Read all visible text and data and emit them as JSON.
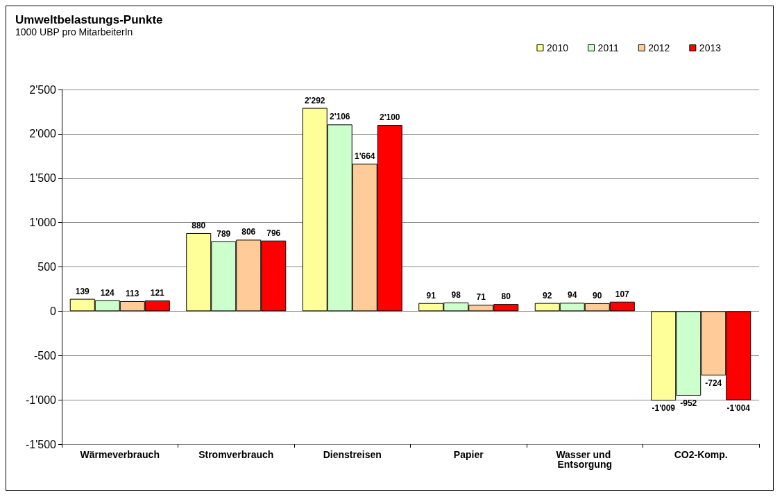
{
  "chart_data": {
    "type": "bar",
    "title": "Umweltbelastungs-Punkte",
    "subtitle": "1000 UBP pro MitarbeiterIn",
    "categories": [
      "Wärmeverbrauch",
      "Stromverbrauch",
      "Dienstreisen",
      "Papier",
      "Wasser und Entsorgung",
      "CO2-Komp."
    ],
    "series": [
      {
        "name": "2010",
        "color": "#ffff99",
        "values": [
          139,
          880,
          2292,
          91,
          92,
          -1009
        ],
        "value_labels": [
          "139",
          "880",
          "2'292",
          "91",
          "92",
          "-1'009"
        ]
      },
      {
        "name": "2011",
        "color": "#ccffcc",
        "values": [
          124,
          789,
          2106,
          98,
          94,
          -952
        ],
        "value_labels": [
          "124",
          "789",
          "2'106",
          "98",
          "94",
          "-952"
        ]
      },
      {
        "name": "2012",
        "color": "#ffcc99",
        "values": [
          113,
          806,
          1664,
          71,
          90,
          -724
        ],
        "value_labels": [
          "113",
          "806",
          "1'664",
          "71",
          "90",
          "-724"
        ]
      },
      {
        "name": "2013",
        "color": "#ff0000",
        "values": [
          121,
          796,
          2100,
          80,
          107,
          -1004
        ],
        "value_labels": [
          "121",
          "796",
          "2'100",
          "80",
          "107",
          "-1'004"
        ]
      }
    ],
    "ylim": [
      -1500,
      2500
    ],
    "yticks": [
      {
        "value": -1500,
        "label": "-1'500"
      },
      {
        "value": -1000,
        "label": "-1'000"
      },
      -500,
      0,
      500,
      {
        "value": 1000,
        "label": "1'000"
      },
      {
        "value": 1500,
        "label": "1'500"
      },
      {
        "value": 2000,
        "label": "2'000"
      },
      {
        "value": 2500,
        "label": "2'500"
      }
    ],
    "grid": "y",
    "legend": "top right"
  }
}
